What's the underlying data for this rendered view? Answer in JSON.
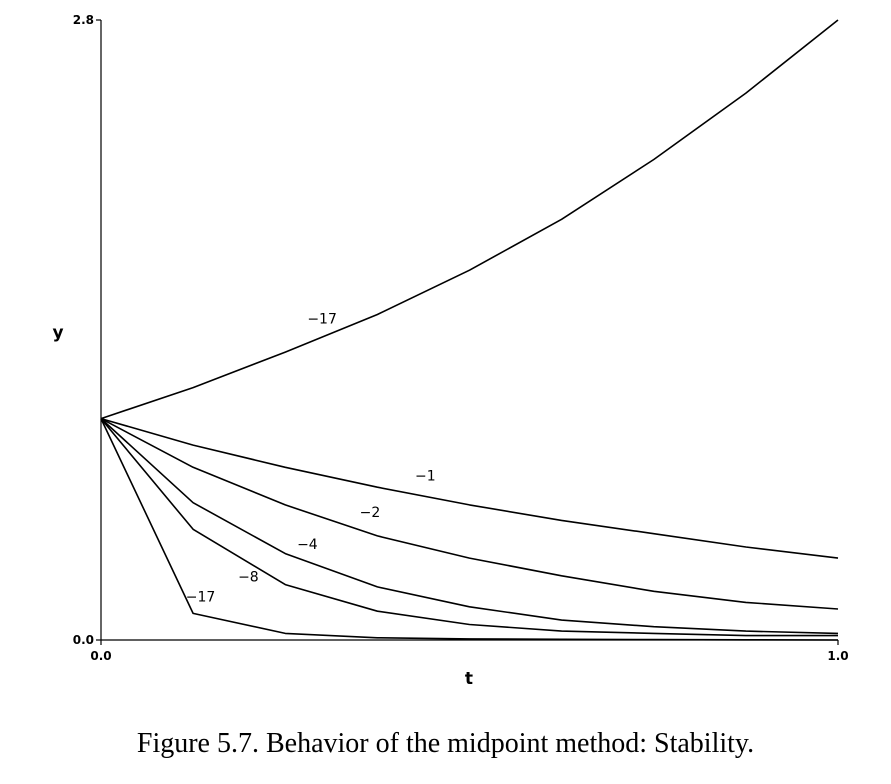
{
  "chart_data": {
    "type": "line",
    "xlabel": "t",
    "ylabel": "y",
    "xlim": [
      0.0,
      1.0
    ],
    "ylim": [
      0.0,
      2.8
    ],
    "x_ticks": [
      "0.0",
      "1.0"
    ],
    "y_ticks": [
      "0.0",
      "2.8"
    ],
    "x": [
      0.0,
      0.125,
      0.25,
      0.375,
      0.5,
      0.625,
      0.75,
      0.875,
      1.0
    ],
    "series": [
      {
        "name": "-17",
        "values": [
          1.0,
          1.14,
          1.3,
          1.47,
          1.67,
          1.9,
          2.17,
          2.47,
          2.8
        ]
      },
      {
        "name": "-1",
        "values": [
          1.0,
          0.88,
          0.78,
          0.69,
          0.61,
          0.54,
          0.48,
          0.42,
          0.37
        ]
      },
      {
        "name": "-2",
        "values": [
          1.0,
          0.78,
          0.61,
          0.47,
          0.37,
          0.29,
          0.22,
          0.17,
          0.14
        ]
      },
      {
        "name": "-4",
        "values": [
          1.0,
          0.62,
          0.39,
          0.24,
          0.15,
          0.09,
          0.06,
          0.04,
          0.03
        ]
      },
      {
        "name": "-8",
        "values": [
          1.0,
          0.5,
          0.25,
          0.13,
          0.07,
          0.04,
          0.03,
          0.02,
          0.02
        ]
      },
      {
        "name": "-17",
        "values": [
          1.0,
          0.12,
          0.03,
          0.01,
          0.005,
          0.003,
          0.002,
          0.001,
          0.0
        ]
      }
    ],
    "labels": [
      {
        "text": "−17",
        "x": 0.3,
        "y": 1.43
      },
      {
        "text": "−1",
        "x": 0.44,
        "y": 0.72
      },
      {
        "text": "−2",
        "x": 0.365,
        "y": 0.555
      },
      {
        "text": "−4",
        "x": 0.28,
        "y": 0.41
      },
      {
        "text": "−8",
        "x": 0.2,
        "y": 0.265
      },
      {
        "text": "−17",
        "x": 0.135,
        "y": 0.175
      }
    ]
  },
  "caption": "Figure 5.7. Behavior of the midpoint method: Stability."
}
